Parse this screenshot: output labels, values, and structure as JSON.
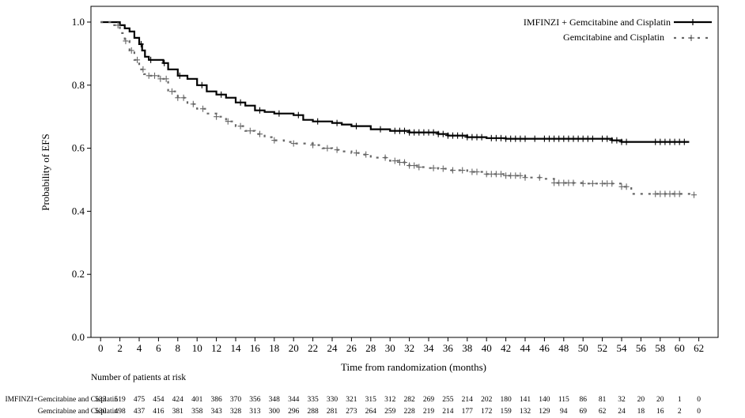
{
  "chart_data": {
    "type": "line",
    "xlabel": "Time from randomization (months)",
    "ylabel": "Probability of EFS",
    "xlim": [
      -1,
      64
    ],
    "ylim": [
      0,
      1.05
    ],
    "xticks": [
      "0",
      "2",
      "4",
      "6",
      "8",
      "10",
      "12",
      "14",
      "16",
      "18",
      "20",
      "22",
      "24",
      "26",
      "28",
      "30",
      "32",
      "34",
      "36",
      "38",
      "40",
      "42",
      "44",
      "46",
      "48",
      "50",
      "52",
      "54",
      "56",
      "58",
      "60",
      "62"
    ],
    "yticks": [
      "0.0",
      "0.2",
      "0.4",
      "0.6",
      "0.8",
      "1.0"
    ],
    "legend_position": "top-right",
    "series": [
      {
        "name": "IMFINZI + Gemcitabine and Cisplatin",
        "color": "#000000",
        "style": "solid",
        "points": [
          [
            0,
            1.0
          ],
          [
            1,
            1.0
          ],
          [
            2,
            0.99
          ],
          [
            2.5,
            0.98
          ],
          [
            3,
            0.97
          ],
          [
            3.5,
            0.95
          ],
          [
            4,
            0.93
          ],
          [
            4.3,
            0.91
          ],
          [
            4.6,
            0.89
          ],
          [
            5,
            0.88
          ],
          [
            6,
            0.88
          ],
          [
            6.5,
            0.87
          ],
          [
            7,
            0.85
          ],
          [
            8,
            0.83
          ],
          [
            9,
            0.82
          ],
          [
            10,
            0.8
          ],
          [
            11,
            0.78
          ],
          [
            12,
            0.77
          ],
          [
            13,
            0.76
          ],
          [
            14,
            0.745
          ],
          [
            15,
            0.735
          ],
          [
            16,
            0.72
          ],
          [
            17,
            0.715
          ],
          [
            18,
            0.71
          ],
          [
            20,
            0.705
          ],
          [
            21,
            0.69
          ],
          [
            22,
            0.685
          ],
          [
            24,
            0.68
          ],
          [
            25,
            0.675
          ],
          [
            26,
            0.67
          ],
          [
            28,
            0.66
          ],
          [
            30,
            0.655
          ],
          [
            32,
            0.65
          ],
          [
            35,
            0.645
          ],
          [
            36,
            0.64
          ],
          [
            38,
            0.635
          ],
          [
            40,
            0.632
          ],
          [
            42,
            0.63
          ],
          [
            44,
            0.63
          ],
          [
            48,
            0.63
          ],
          [
            50,
            0.63
          ],
          [
            52,
            0.63
          ],
          [
            53,
            0.625
          ],
          [
            54,
            0.62
          ],
          [
            56,
            0.62
          ],
          [
            58,
            0.62
          ],
          [
            61,
            0.62
          ]
        ],
        "censor_x": [
          4.2,
          5.2,
          6.6,
          8.2,
          10.5,
          12.5,
          14.5,
          16.5,
          18.5,
          20.5,
          22.5,
          24.5,
          26.5,
          29,
          30.5,
          31,
          31.5,
          32,
          32.5,
          33,
          33.5,
          34,
          34.5,
          35,
          35.5,
          36,
          36.5,
          37,
          37.5,
          38,
          38.5,
          39,
          39.5,
          40.5,
          41,
          41.5,
          42,
          42.5,
          43,
          43.5,
          44,
          45,
          46,
          46.5,
          47,
          47.5,
          48,
          48.5,
          49,
          49.5,
          50,
          50.5,
          51,
          52,
          52.5,
          53,
          53.5,
          54,
          54.5,
          57.5,
          58,
          58.5,
          59,
          59.5,
          60,
          60.5
        ]
      },
      {
        "name": "Gemcitabine and Cisplatin",
        "color": "#666666",
        "style": "dashed",
        "points": [
          [
            0,
            1.0
          ],
          [
            1,
            0.99
          ],
          [
            2,
            0.965
          ],
          [
            2.5,
            0.94
          ],
          [
            3,
            0.91
          ],
          [
            3.5,
            0.88
          ],
          [
            4,
            0.85
          ],
          [
            4.5,
            0.835
          ],
          [
            5,
            0.83
          ],
          [
            6,
            0.82
          ],
          [
            7,
            0.78
          ],
          [
            8,
            0.76
          ],
          [
            9,
            0.74
          ],
          [
            10,
            0.725
          ],
          [
            11,
            0.71
          ],
          [
            12,
            0.7
          ],
          [
            13,
            0.685
          ],
          [
            14,
            0.67
          ],
          [
            15,
            0.655
          ],
          [
            16,
            0.645
          ],
          [
            17,
            0.635
          ],
          [
            18,
            0.625
          ],
          [
            19,
            0.62
          ],
          [
            20,
            0.615
          ],
          [
            22,
            0.61
          ],
          [
            23,
            0.6
          ],
          [
            24,
            0.595
          ],
          [
            25,
            0.59
          ],
          [
            26,
            0.585
          ],
          [
            27,
            0.58
          ],
          [
            28,
            0.57
          ],
          [
            30,
            0.56
          ],
          [
            31,
            0.555
          ],
          [
            32,
            0.545
          ],
          [
            33,
            0.54
          ],
          [
            34,
            0.537
          ],
          [
            35,
            0.535
          ],
          [
            36,
            0.53
          ],
          [
            38,
            0.525
          ],
          [
            40,
            0.518
          ],
          [
            42,
            0.513
          ],
          [
            44,
            0.507
          ],
          [
            46,
            0.503
          ],
          [
            47,
            0.49
          ],
          [
            50,
            0.488
          ],
          [
            52,
            0.488
          ],
          [
            54,
            0.478
          ],
          [
            55,
            0.455
          ],
          [
            58,
            0.455
          ],
          [
            61.5,
            0.452
          ]
        ],
        "censor_x": [
          1.8,
          2.6,
          3.2,
          3.8,
          4.4,
          5.0,
          5.6,
          6.2,
          6.8,
          7.4,
          8.0,
          8.6,
          9.6,
          10.6,
          12.0,
          13.2,
          14.5,
          15.5,
          16.5,
          18.0,
          20.0,
          22.0,
          23.5,
          24.5,
          26.5,
          27.5,
          29.5,
          30.5,
          31.0,
          31.5,
          32.0,
          32.5,
          33.0,
          34.5,
          35.5,
          36.5,
          37.5,
          38.5,
          39.0,
          40.0,
          40.5,
          41.0,
          41.5,
          42.0,
          42.5,
          43.0,
          43.5,
          44.0,
          45.5,
          47.0,
          47.5,
          48.0,
          48.5,
          49.0,
          50.0,
          51.0,
          52.0,
          52.5,
          53.0,
          54.0,
          54.5,
          57.5,
          58.0,
          58.5,
          59.0,
          59.5,
          60.0,
          61.5
        ]
      }
    ],
    "risk_table": {
      "header": "Number of patients at risk",
      "rows": [
        {
          "label": "IMFINZI+Gemcitabine and Cisplatin",
          "values": [
            "533",
            "519",
            "475",
            "454",
            "424",
            "401",
            "386",
            "370",
            "356",
            "348",
            "344",
            "335",
            "330",
            "321",
            "315",
            "312",
            "282",
            "269",
            "255",
            "214",
            "202",
            "180",
            "141",
            "140",
            "115",
            "86",
            "81",
            "32",
            "20",
            "20",
            "1",
            "0"
          ]
        },
        {
          "label": "Gemcitabine and Cisplatin",
          "values": [
            "530",
            "498",
            "437",
            "416",
            "381",
            "358",
            "343",
            "328",
            "313",
            "300",
            "296",
            "288",
            "281",
            "273",
            "264",
            "259",
            "228",
            "219",
            "214",
            "177",
            "172",
            "159",
            "132",
            "129",
            "94",
            "69",
            "62",
            "24",
            "18",
            "16",
            "2",
            "0"
          ]
        }
      ]
    }
  }
}
